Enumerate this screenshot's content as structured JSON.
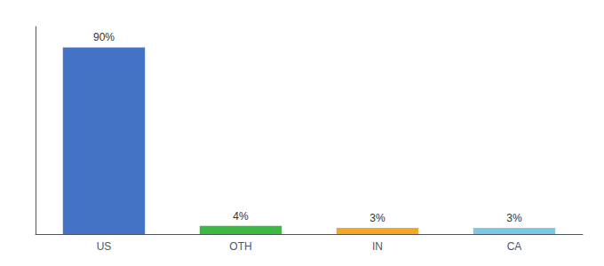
{
  "chart_data": {
    "type": "bar",
    "categories": [
      "US",
      "OTH",
      "IN",
      "CA"
    ],
    "values": [
      90,
      4,
      3,
      3
    ],
    "value_labels": [
      "90%",
      "4%",
      "3%",
      "3%"
    ],
    "data_labels": true,
    "colors": [
      "#4472c4",
      "#3cb943",
      "#f5a623",
      "#7ec8e3"
    ],
    "ylim": [
      0,
      100
    ],
    "tick_labels": "x",
    "grid": false
  }
}
